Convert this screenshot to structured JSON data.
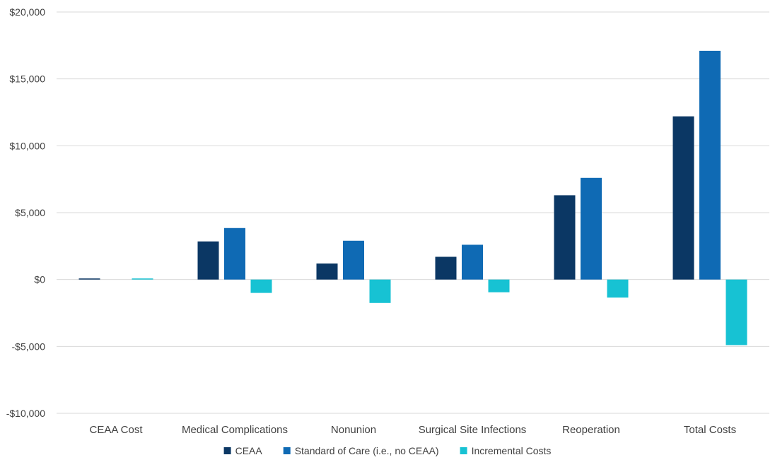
{
  "chart_data": {
    "type": "bar",
    "title": "",
    "xlabel": "",
    "ylabel": "",
    "ylim": [
      -10000,
      20000
    ],
    "yticks": [
      -10000,
      -5000,
      0,
      5000,
      10000,
      15000,
      20000
    ],
    "ytick_labels": [
      "-$10,000",
      "-$5,000",
      "$0",
      "$5,000",
      "$10,000",
      "$15,000",
      "$20,000"
    ],
    "grid": true,
    "legend_position": "bottom",
    "categories": [
      "CEAA Cost",
      "Medical Complications",
      "Nonunion",
      "Surgical Site Infections",
      "Reoperation",
      "Total Costs"
    ],
    "series": [
      {
        "name": "CEAA",
        "color": "#0b3764",
        "values": [
          80,
          2850,
          1200,
          1700,
          6300,
          12200
        ]
      },
      {
        "name": "Standard of Care (i.e., no CEAA)",
        "color": "#0f6ab4",
        "values": [
          0,
          3850,
          2900,
          2600,
          7600,
          17100
        ]
      },
      {
        "name": "Incremental Costs",
        "color": "#17c2d3",
        "values": [
          80,
          -1000,
          -1750,
          -950,
          -1350,
          -4900
        ]
      }
    ]
  }
}
